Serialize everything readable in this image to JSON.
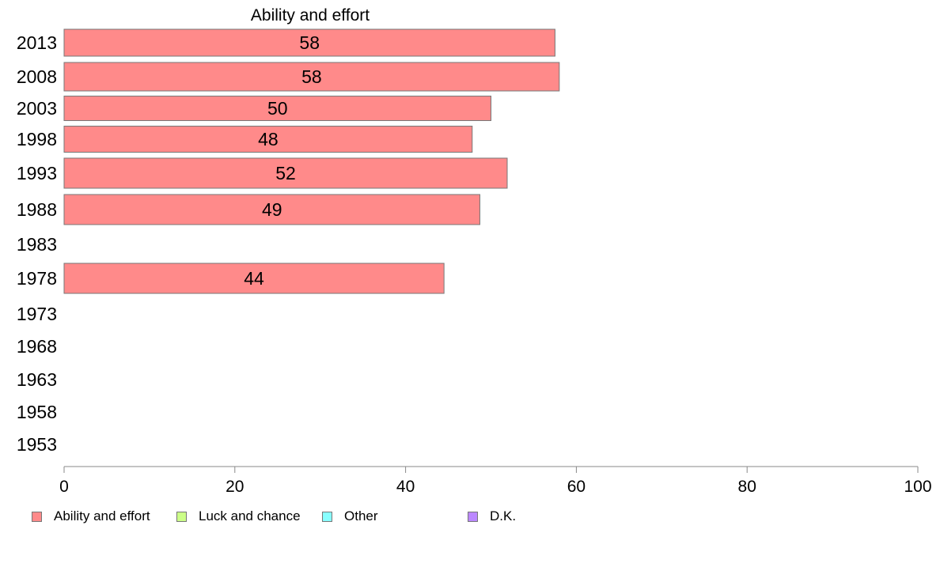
{
  "chart_data": {
    "type": "bar",
    "orientation": "horizontal",
    "title": "Ability and effort",
    "categories": [
      "2013",
      "2008",
      "2003",
      "1998",
      "1993",
      "1988",
      "1983",
      "1978",
      "1973",
      "1968",
      "1963",
      "1958",
      "1953"
    ],
    "series": [
      {
        "name": "Ability and effort",
        "color": "#ff8a8a",
        "values": [
          57.5,
          58,
          50,
          47.8,
          51.9,
          48.7,
          null,
          44.5,
          null,
          null,
          null,
          null,
          null
        ],
        "labels": [
          "58",
          "58",
          "50",
          "48",
          "52",
          "49",
          "",
          "44",
          "",
          "",
          "",
          "",
          ""
        ]
      }
    ],
    "xlim": [
      0,
      100
    ],
    "xticks": [
      "0",
      "20",
      "40",
      "60",
      "80",
      "100"
    ],
    "grid": false,
    "legend_position": "bottom-left"
  },
  "legend": {
    "items": [
      {
        "label": "Ability and effort",
        "color": "#ff8a8a"
      },
      {
        "label": "Luck and chance",
        "color": "#ccff88"
      },
      {
        "label": "Other",
        "color": "#88ffff"
      },
      {
        "label": "D.K.",
        "color": "#bb88ff"
      }
    ]
  }
}
